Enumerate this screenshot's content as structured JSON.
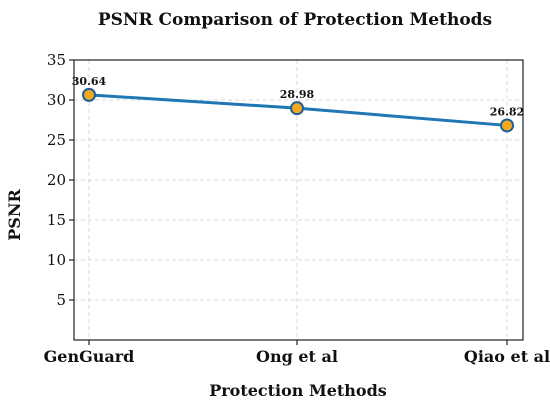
{
  "chart_data": {
    "type": "line",
    "title": "PSNR Comparison of Protection Methods",
    "xlabel": "Protection Methods",
    "ylabel": "PSNR",
    "categories": [
      "GenGuard",
      "Ong et al",
      "Qiao et al"
    ],
    "series": [
      {
        "values": [
          30.64,
          28.98,
          26.82
        ]
      }
    ],
    "data_labels": [
      "30.64",
      "28.98",
      "26.82"
    ],
    "ylim": [
      0,
      35
    ],
    "yticks": [
      5,
      10,
      15,
      20,
      25,
      30,
      35
    ],
    "ytick_labels": [
      "5",
      "10",
      "15",
      "20",
      "25",
      "30",
      "35"
    ],
    "grid": true,
    "colors": {
      "line": "#1f77b4",
      "marker_fill": "#f4a81d",
      "marker_edge": "#1f5f99"
    }
  }
}
